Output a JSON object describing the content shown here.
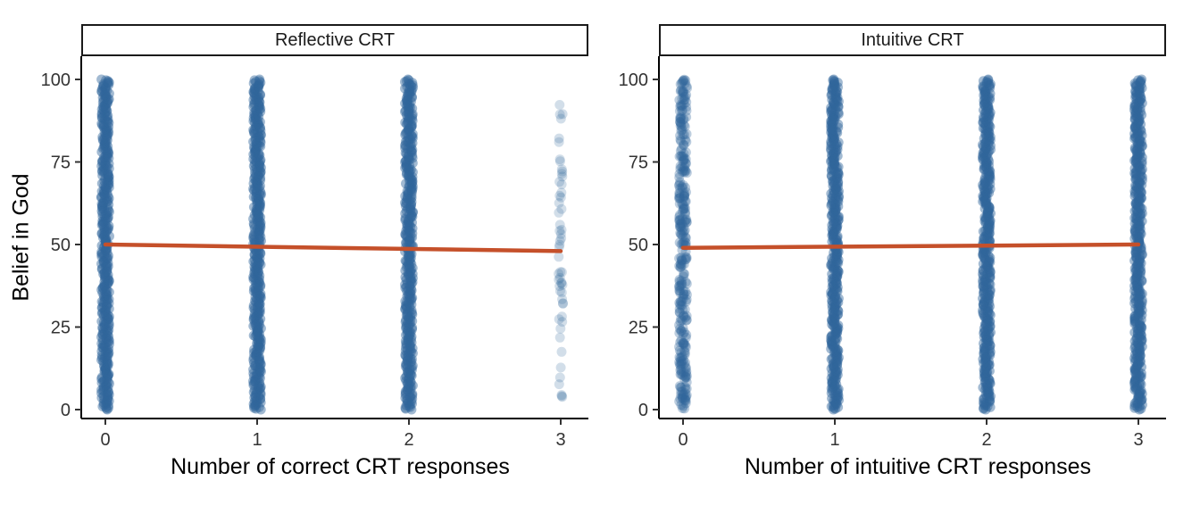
{
  "chart_data": {
    "type": "scatter",
    "ylabel": "Belief in God",
    "ylim": [
      0,
      100
    ],
    "yticks": [
      0,
      25,
      50,
      75,
      100
    ],
    "xticks": [
      0,
      1,
      2,
      3
    ],
    "grid": false,
    "legend": "none",
    "point_color": "#31679c",
    "line_color": "#c5502a",
    "facets": [
      {
        "title": "Reflective CRT",
        "xlabel": "Number of correct CRT responses",
        "columns": [
          {
            "x": 0,
            "count": 420,
            "spread": "dense",
            "ymin": 0,
            "ymax": 100
          },
          {
            "x": 1,
            "count": 420,
            "spread": "dense",
            "ymin": 0,
            "ymax": 100
          },
          {
            "x": 2,
            "count": 400,
            "spread": "dense",
            "ymin": 0,
            "ymax": 100
          },
          {
            "x": 3,
            "count": 55,
            "spread": "sparse",
            "ymin": 2,
            "ymax": 100
          }
        ],
        "trend": {
          "y_at_x0": 50,
          "y_at_x3": 48
        }
      },
      {
        "title": "Intuitive CRT",
        "xlabel": "Number of intuitive CRT responses",
        "columns": [
          {
            "x": 0,
            "count": 310,
            "spread": "medium",
            "ymin": 0,
            "ymax": 100
          },
          {
            "x": 1,
            "count": 420,
            "spread": "dense",
            "ymin": 0,
            "ymax": 100
          },
          {
            "x": 2,
            "count": 420,
            "spread": "dense",
            "ymin": 0,
            "ymax": 100
          },
          {
            "x": 3,
            "count": 420,
            "spread": "dense",
            "ymin": 0,
            "ymax": 100
          }
        ],
        "trend": {
          "y_at_x0": 49,
          "y_at_x3": 50
        }
      }
    ]
  }
}
